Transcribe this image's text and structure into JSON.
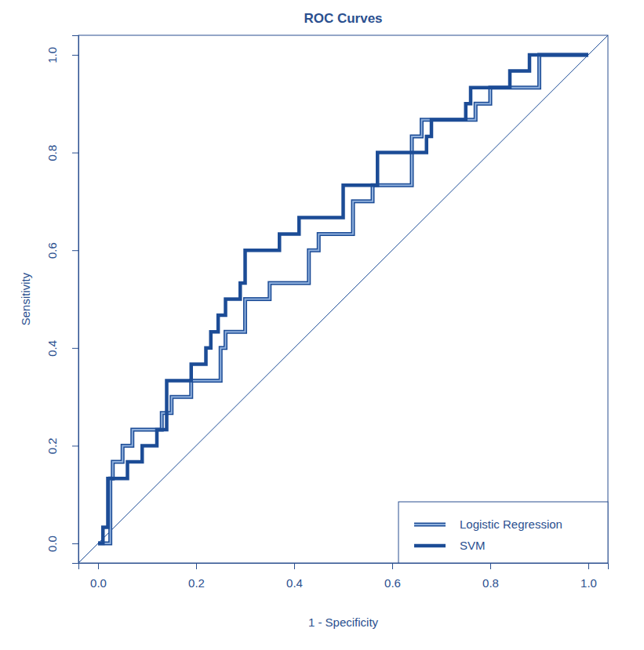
{
  "chart_data": {
    "type": "line",
    "title": "ROC Curves",
    "x_label": "1 - Specificity",
    "y_label": "Sensitivity",
    "xlim": [
      -0.04,
      1.04
    ],
    "ylim": [
      -0.04,
      1.04
    ],
    "xticks": [
      {
        "value": 0,
        "label": "0.0"
      },
      0.2,
      0.4,
      0.6,
      0.8,
      {
        "value": 1,
        "label": "1.0"
      }
    ],
    "yticks": [
      {
        "value": 0,
        "label": "0.0"
      },
      0.2,
      0.4,
      0.6,
      0.8,
      {
        "value": 1,
        "label": "1.0"
      }
    ],
    "grid": false,
    "legend": "bottom-right",
    "reference_line": {
      "x": [
        -0.04,
        1.04
      ],
      "values": [
        -0.04,
        1.04
      ]
    },
    "series": [
      {
        "name": "Logistic Regression",
        "color": "#8fb0dd",
        "x": [
          0,
          0.025,
          0.025,
          0.03,
          0.03,
          0.05,
          0.05,
          0.07,
          0.07,
          0.13,
          0.13,
          0.15,
          0.15,
          0.19,
          0.19,
          0.25,
          0.25,
          0.26,
          0.26,
          0.3,
          0.3,
          0.35,
          0.35,
          0.43,
          0.43,
          0.45,
          0.45,
          0.52,
          0.52,
          0.56,
          0.56,
          0.64,
          0.64,
          0.66,
          0.66,
          0.77,
          0.77,
          0.8,
          0.8,
          0.9,
          0.9,
          1.0
        ],
        "values": [
          0,
          0,
          0.133,
          0.133,
          0.167,
          0.167,
          0.2,
          0.2,
          0.233,
          0.233,
          0.267,
          0.267,
          0.3,
          0.3,
          0.333,
          0.333,
          0.4,
          0.4,
          0.433,
          0.433,
          0.5,
          0.5,
          0.533,
          0.533,
          0.6,
          0.6,
          0.633,
          0.633,
          0.7,
          0.7,
          0.733,
          0.733,
          0.833,
          0.833,
          0.867,
          0.867,
          0.9,
          0.9,
          0.933,
          0.933,
          1.0,
          1.0
        ]
      },
      {
        "name": "SVM",
        "color": "#1c4c96",
        "x": [
          0,
          0.01,
          0.01,
          0.02,
          0.02,
          0.06,
          0.06,
          0.09,
          0.09,
          0.12,
          0.12,
          0.14,
          0.14,
          0.19,
          0.19,
          0.22,
          0.22,
          0.23,
          0.23,
          0.245,
          0.245,
          0.26,
          0.26,
          0.29,
          0.29,
          0.3,
          0.3,
          0.37,
          0.37,
          0.41,
          0.41,
          0.5,
          0.5,
          0.57,
          0.57,
          0.67,
          0.67,
          0.68,
          0.68,
          0.75,
          0.75,
          0.76,
          0.76,
          0.84,
          0.84,
          0.88,
          0.88,
          1.0
        ],
        "values": [
          0,
          0,
          0.033,
          0.033,
          0.133,
          0.133,
          0.167,
          0.167,
          0.2,
          0.2,
          0.233,
          0.233,
          0.333,
          0.333,
          0.367,
          0.367,
          0.4,
          0.4,
          0.433,
          0.433,
          0.467,
          0.467,
          0.5,
          0.5,
          0.533,
          0.533,
          0.6,
          0.6,
          0.633,
          0.633,
          0.667,
          0.667,
          0.733,
          0.733,
          0.8,
          0.8,
          0.833,
          0.833,
          0.867,
          0.867,
          0.9,
          0.9,
          0.933,
          0.933,
          0.967,
          0.967,
          1.0,
          1.0
        ]
      }
    ]
  }
}
